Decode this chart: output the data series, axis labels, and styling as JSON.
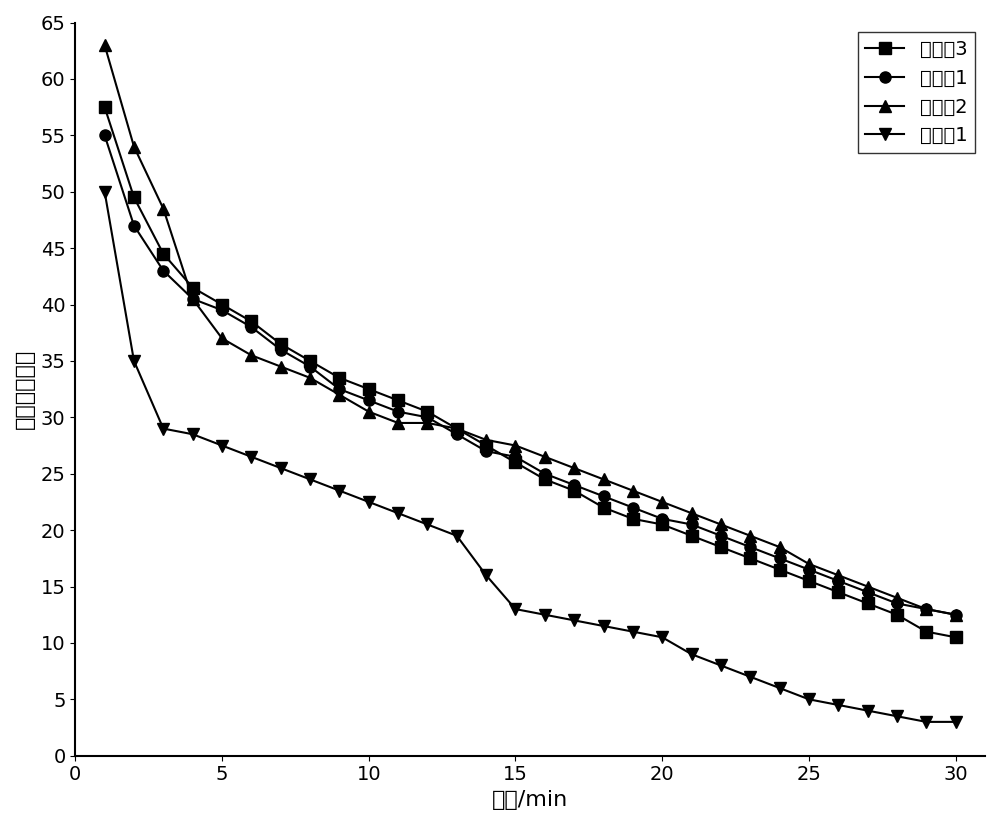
{
  "title": "",
  "xlabel": "时间/min",
  "ylabel": "甲烷转化率％",
  "xlim": [
    0,
    31
  ],
  "ylim": [
    0,
    65
  ],
  "xticks": [
    0,
    5,
    10,
    15,
    20,
    25,
    30
  ],
  "yticks": [
    0,
    5,
    10,
    15,
    20,
    25,
    30,
    35,
    40,
    45,
    50,
    55,
    60,
    65
  ],
  "series": [
    {
      "label": "实施例3",
      "marker": "s",
      "x": [
        1,
        2,
        3,
        4,
        5,
        6,
        7,
        8,
        9,
        10,
        11,
        12,
        13,
        14,
        15,
        16,
        17,
        18,
        19,
        20,
        21,
        22,
        23,
        24,
        25,
        26,
        27,
        28,
        29,
        30
      ],
      "y": [
        57.5,
        49.5,
        44.5,
        41.5,
        40.0,
        38.5,
        36.5,
        35.0,
        33.5,
        32.5,
        31.5,
        30.5,
        29.0,
        27.5,
        26.0,
        24.5,
        23.5,
        22.0,
        21.0,
        20.5,
        19.5,
        18.5,
        17.5,
        16.5,
        15.5,
        14.5,
        13.5,
        12.5,
        11.0,
        10.5
      ]
    },
    {
      "label": "实施例1",
      "marker": "o",
      "x": [
        1,
        2,
        3,
        4,
        5,
        6,
        7,
        8,
        9,
        10,
        11,
        12,
        13,
        14,
        15,
        16,
        17,
        18,
        19,
        20,
        21,
        22,
        23,
        24,
        25,
        26,
        27,
        28,
        29,
        30
      ],
      "y": [
        55.0,
        47.0,
        43.0,
        40.5,
        39.5,
        38.0,
        36.0,
        34.5,
        32.5,
        31.5,
        30.5,
        30.0,
        28.5,
        27.0,
        26.5,
        25.0,
        24.0,
        23.0,
        22.0,
        21.0,
        20.5,
        19.5,
        18.5,
        17.5,
        16.5,
        15.5,
        14.5,
        13.5,
        13.0,
        12.5
      ]
    },
    {
      "label": "实施例2",
      "marker": "^",
      "x": [
        1,
        2,
        3,
        4,
        5,
        6,
        7,
        8,
        9,
        10,
        11,
        12,
        13,
        14,
        15,
        16,
        17,
        18,
        19,
        20,
        21,
        22,
        23,
        24,
        25,
        26,
        27,
        28,
        29,
        30
      ],
      "y": [
        63.0,
        54.0,
        48.5,
        40.5,
        37.0,
        35.5,
        34.5,
        33.5,
        32.0,
        30.5,
        29.5,
        29.5,
        29.0,
        28.0,
        27.5,
        26.5,
        25.5,
        24.5,
        23.5,
        22.5,
        21.5,
        20.5,
        19.5,
        18.5,
        17.0,
        16.0,
        15.0,
        14.0,
        13.0,
        12.5
      ]
    },
    {
      "label": "对比例1",
      "marker": "v",
      "x": [
        1,
        2,
        3,
        4,
        5,
        6,
        7,
        8,
        9,
        10,
        11,
        12,
        13,
        14,
        15,
        16,
        17,
        18,
        19,
        20,
        21,
        22,
        23,
        24,
        25,
        26,
        27,
        28,
        29,
        30
      ],
      "y": [
        50.0,
        35.0,
        29.0,
        28.5,
        27.5,
        26.5,
        25.5,
        24.5,
        23.5,
        22.5,
        21.5,
        20.5,
        19.5,
        16.0,
        13.0,
        12.5,
        12.0,
        11.5,
        11.0,
        10.5,
        9.0,
        8.0,
        7.0,
        6.0,
        5.0,
        4.5,
        4.0,
        3.5,
        3.0,
        3.0
      ]
    }
  ],
  "line_color": "#000000",
  "bg_color": "#ffffff",
  "legend_loc": "upper right",
  "fontsize_label": 16,
  "fontsize_tick": 14,
  "fontsize_legend": 14,
  "marker_size": 8,
  "line_width": 1.5
}
